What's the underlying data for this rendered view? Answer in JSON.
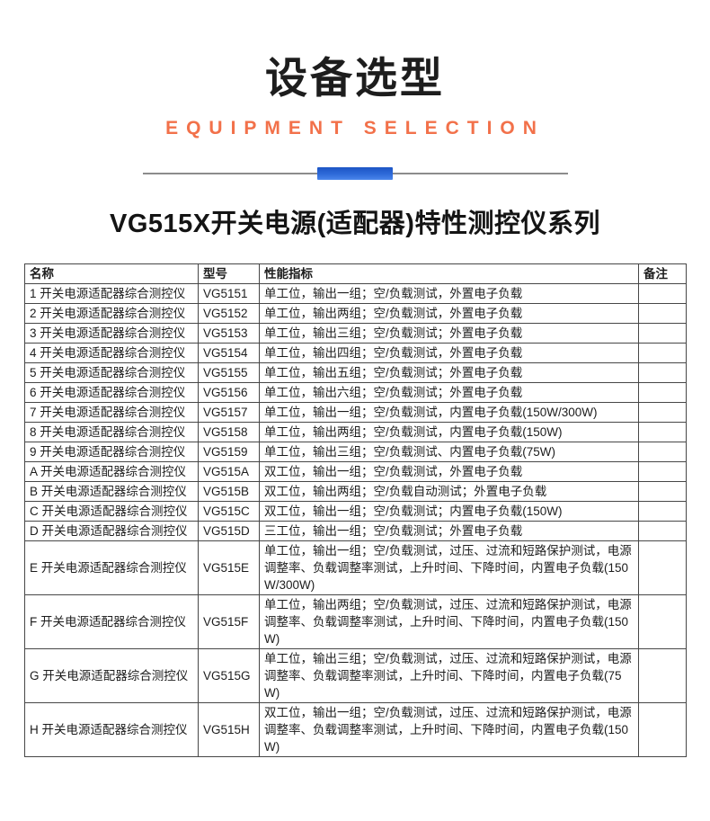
{
  "header": {
    "title": "设备选型",
    "subtitle": "EQUIPMENT SELECTION"
  },
  "section": {
    "title": "VG515X开关电源(适配器)特性测控仪系列"
  },
  "colors": {
    "accent_orange": "#f2714a",
    "accent_blue": "#2e6ad9",
    "divider_gray": "#8c8c8c",
    "table_border": "#474747"
  },
  "table": {
    "columns": [
      "名称",
      "型号",
      "性能指标",
      "备注"
    ],
    "rows": [
      {
        "name": "1 开关电源适配器综合测控仪",
        "model": "VG5151",
        "spec": "单工位，输出一组；空/负载测试，外置电子负载",
        "note": ""
      },
      {
        "name": "2 开关电源适配器综合测控仪",
        "model": "VG5152",
        "spec": "单工位，输出两组；空/负载测试，外置电子负载",
        "note": ""
      },
      {
        "name": "3 开关电源适配器综合测控仪",
        "model": "VG5153",
        "spec": "单工位，输出三组；空/负载测试；外置电子负载",
        "note": ""
      },
      {
        "name": "4 开关电源适配器综合测控仪",
        "model": "VG5154",
        "spec": "单工位，输出四组；空/负载测试，外置电子负载",
        "note": ""
      },
      {
        "name": "5 开关电源适配器综合测控仪",
        "model": "VG5155",
        "spec": "单工位，输出五组；空/负载测试；外置电子负载",
        "note": ""
      },
      {
        "name": "6 开关电源适配器综合测控仪",
        "model": "VG5156",
        "spec": "单工位，输出六组；空/负载测试；外置电子负载",
        "note": ""
      },
      {
        "name": "7 开关电源适配器综合测控仪",
        "model": "VG5157",
        "spec": "单工位，输出一组；空/负载测试，内置电子负载(150W/300W)",
        "note": ""
      },
      {
        "name": "8 开关电源适配器综合测控仪",
        "model": "VG5158",
        "spec": "单工位，输出两组；空/负载测试，内置电子负载(150W)",
        "note": ""
      },
      {
        "name": "9 开关电源适配器综合测控仪",
        "model": "VG5159",
        "spec": "单工位，输出三组；空/负载测试、内置电子负载(75W)",
        "note": ""
      },
      {
        "name": "A 开关电源适配器综合测控仪",
        "model": "VG515A",
        "spec": "双工位，输出一组；空/负载测试，外置电子负载",
        "note": ""
      },
      {
        "name": "B 开关电源适配器综合测控仪",
        "model": "VG515B",
        "spec": "双工位，输出两组；空/负载自动测试；外置电子负载",
        "note": ""
      },
      {
        "name": "C 开关电源适配器综合测控仪",
        "model": "VG515C",
        "spec": "双工位，输出一组；空/负载测试；内置电子负载(150W)",
        "note": ""
      },
      {
        "name": "D 开关电源适配器综合测控仪",
        "model": "VG515D",
        "spec": "三工位，输出一组；空/负载测试；外置电子负载",
        "note": ""
      },
      {
        "name": "E 开关电源适配器综合测控仪",
        "model": "VG515E",
        "spec": "单工位，输出一组；空/负载测试，过压、过流和短路保护测试，电源调整率、负载调整率测试，上升时间、下降时间，内置电子负载(150W/300W)",
        "note": ""
      },
      {
        "name": "F 开关电源适配器综合测控仪",
        "model": "VG515F",
        "spec": "单工位，输出两组；空/负载测试，过压、过流和短路保护测试，电源调整率、负载调整率测试，上升时间、下降时间，内置电子负载(150W)",
        "note": ""
      },
      {
        "name": "G 开关电源适配器综合测控仪",
        "model": "VG515G",
        "spec": "单工位，输出三组；空/负载测试，过压、过流和短路保护测试，电源调整率、负载调整率测试，上升时间、下降时间，内置电子负载(75W)",
        "note": ""
      },
      {
        "name": "H 开关电源适配器综合测控仪",
        "model": "VG515H",
        "spec": "双工位，输出一组；空/负载测试，过压、过流和短路保护测试，电源调整率、负载调整率测试，上升时间、下降时间，内置电子负载(150W)",
        "note": ""
      }
    ]
  }
}
